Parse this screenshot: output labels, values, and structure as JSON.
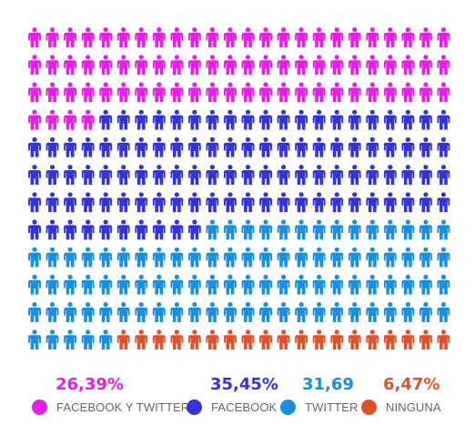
{
  "chart_data": {
    "type": "pictograph",
    "total_icons": 288,
    "grid": {
      "columns": 24,
      "rows": 12
    },
    "icon": "person-icon",
    "categories": [
      "FACEBOOK Y TWITTER",
      "FACEBOOK",
      "TWITTER",
      "NINGUNA"
    ],
    "series": [
      {
        "name": "FACEBOOK Y TWITTER",
        "label": "26,39%",
        "value": 26.39,
        "icons": 76,
        "color": "#e61ee6"
      },
      {
        "name": "FACEBOOK",
        "label": "35,45%",
        "value": 35.45,
        "icons": 102,
        "color": "#3333dd"
      },
      {
        "name": "TWITTER",
        "label": "31,69",
        "value": 31.69,
        "icons": 91,
        "color": "#1a8fe0"
      },
      {
        "name": "NINGUNA",
        "label": "6,47%",
        "value": 6.47,
        "icons": 19,
        "color": "#e0502a"
      }
    ],
    "legend_position": "bottom"
  }
}
